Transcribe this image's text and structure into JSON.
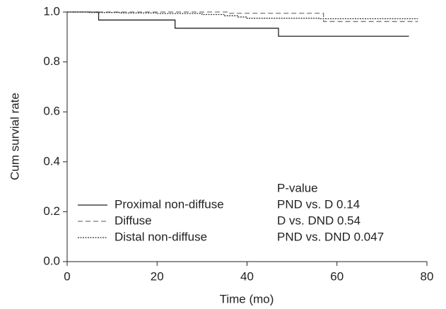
{
  "chart_data": {
    "type": "step",
    "xlabel": "Time (mo)",
    "ylabel": "Cum survial rate",
    "xlim": [
      0,
      80
    ],
    "xticks": [
      0,
      20,
      40,
      60,
      80
    ],
    "ylim": [
      0,
      1
    ],
    "yticks": [
      {
        "value": 0,
        "label": "0.0"
      },
      0.2,
      0.4,
      0.6,
      0.8,
      {
        "value": 1,
        "label": "1.0"
      }
    ],
    "series": [
      {
        "name": "Proximal non-diffuse",
        "color": "#222222",
        "dash": "none",
        "x": [
          0,
          7,
          24,
          47,
          76
        ],
        "values": [
          1.0,
          0.968,
          0.935,
          0.903,
          0.903
        ]
      },
      {
        "name": "Diffuse",
        "color": "#777777",
        "dash": "7 4",
        "x": [
          0,
          36,
          57,
          78
        ],
        "values": [
          1.0,
          0.995,
          0.962,
          0.962
        ]
      },
      {
        "name": "Distal non-diffuse",
        "color": "#333333",
        "dash": "2 1.5",
        "x": [
          0,
          5,
          12,
          20,
          30,
          35,
          38,
          40,
          56,
          78
        ],
        "values": [
          1.0,
          0.998,
          0.996,
          0.994,
          0.99,
          0.985,
          0.98,
          0.975,
          0.973,
          0.973
        ]
      }
    ],
    "annotations": [
      "P-value",
      "PND vs. D 0.14",
      "D vs. DND 0.54",
      "PND vs. DND 0.047"
    ]
  }
}
